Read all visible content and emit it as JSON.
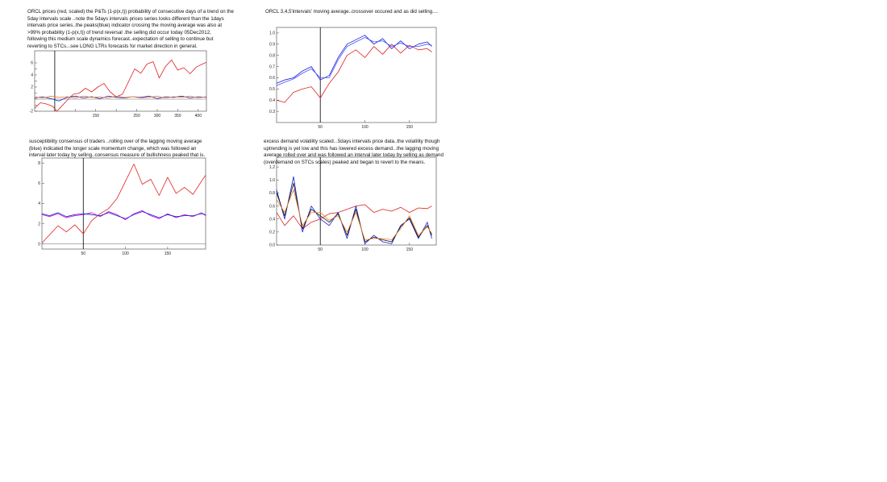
{
  "captions": {
    "p1": "ORCL prices (red, scaled) the P&Ts (1-p(x,t))     probability of consecutive days of a trend on the\n5day intervals scale ..note the 5days intervals prices series looks different than the 1days\nintervals price series..the peaks(blue) indicator crossing the moving average was also at\n>99% probability (1-p(x,t)) of trend reversal .the selling did occur today 05Dec2012,\nfollowing this medium scale dynamics forecast..expectation of selling to continue but\nreverting to STCs...see LONG LTRs forecasts for market direction in general.",
    "p2": "ORCL 3,4,5'intervals' moving average..crossover occured and as did selling....",
    "p3": "susceptibility consensus of traders ..rolling over of the lagging moving average\n(blue) indicated the longer scale momentum change, which was followed an\ninterval later today by selling..consensus measure of bullishness peaked that is.",
    "p4": "excess demand volatility scaled...5days intervals price data..the volatility though\nuptrending is yet low and this has lowered excess demand...the lagging moving\naverage rolled over and was followed an interval later today by selling as demand\n(overdemand on STCs scales) peaked and began to revert to the means."
  },
  "chart_data": [
    {
      "type": "line",
      "xlim": [
        1,
        420
      ],
      "ylim": [
        -2,
        8
      ],
      "xticks": [
        50,
        100,
        150,
        200,
        250,
        300,
        350,
        400
      ],
      "xtick_labels": [
        "",
        "",
        "150",
        "",
        "250",
        "300",
        "350",
        "400"
      ],
      "yticks": [
        -2,
        -1,
        0,
        1,
        2,
        3,
        4,
        5,
        6
      ],
      "ytick_labels": [
        "-2",
        "",
        "",
        "",
        "2",
        "",
        "4",
        "",
        "6"
      ],
      "vline": 50,
      "grid": false,
      "series": [
        {
          "color": "#e02020",
          "x": [
            1,
            15,
            30,
            45,
            55,
            65,
            80,
            95,
            110,
            125,
            140,
            155,
            170,
            185,
            200,
            215,
            230,
            245,
            260,
            275,
            290,
            305,
            320,
            335,
            350,
            365,
            380,
            395,
            410,
            420
          ],
          "y": [
            -1.5,
            -0.6,
            -0.8,
            -1.2,
            -2.0,
            -1.3,
            -0.2,
            0.8,
            1.0,
            1.8,
            1.2,
            2.0,
            2.6,
            1.2,
            0.4,
            0.8,
            2.9,
            5.0,
            4.3,
            5.8,
            6.2,
            3.5,
            5.4,
            6.5,
            4.8,
            5.2,
            4.2,
            5.3,
            5.8,
            6.1
          ]
        },
        {
          "color": "#1020d0",
          "x": [
            1,
            20,
            40,
            60,
            80,
            100,
            120,
            140,
            160,
            180,
            200,
            220,
            240,
            260,
            280,
            300,
            320,
            340,
            360,
            380,
            400,
            420
          ],
          "y": [
            0.2,
            0.4,
            0.1,
            -0.3,
            0.3,
            0.5,
            0.2,
            0.4,
            0.1,
            0.5,
            0.3,
            0.2,
            0.4,
            0.3,
            0.5,
            0.1,
            0.4,
            0.3,
            0.5,
            0.2,
            0.4,
            0.3
          ]
        },
        {
          "color": "#f08020",
          "x": [
            1,
            20,
            40,
            60,
            80,
            100,
            120,
            140,
            160,
            180,
            200,
            220,
            240,
            260,
            280,
            300,
            320,
            340,
            360,
            380,
            400,
            420
          ],
          "y": [
            0.4,
            0.2,
            0.5,
            0.3,
            0.4,
            0.2,
            0.5,
            0.3,
            0.4,
            0.2,
            0.5,
            0.3,
            0.4,
            0.2,
            0.3,
            0.5,
            0.2,
            0.4,
            0.3,
            0.5,
            0.2,
            0.4
          ]
        }
      ]
    },
    {
      "type": "line",
      "xlim": [
        1,
        180
      ],
      "ylim": [
        0.2,
        1.05
      ],
      "xticks": [
        50,
        100,
        150
      ],
      "xtick_labels": [
        "50",
        "100",
        "150"
      ],
      "yticks": [
        0.3,
        0.4,
        0.5,
        0.6,
        0.7,
        0.8,
        0.9,
        1.0
      ],
      "ytick_labels": [
        "0.3",
        "0.4",
        "0.5",
        "0.6",
        "0.7",
        "0.8",
        "0.9",
        "1.0"
      ],
      "vline": 50,
      "grid": false,
      "series": [
        {
          "color": "#e02020",
          "x": [
            1,
            10,
            20,
            30,
            40,
            50,
            60,
            70,
            80,
            90,
            100,
            110,
            120,
            130,
            140,
            150,
            160,
            170,
            175
          ],
          "y": [
            0.4,
            0.38,
            0.47,
            0.5,
            0.52,
            0.42,
            0.55,
            0.65,
            0.8,
            0.85,
            0.78,
            0.88,
            0.81,
            0.9,
            0.82,
            0.89,
            0.85,
            0.86,
            0.83
          ]
        },
        {
          "color": "#1020d0",
          "x": [
            1,
            10,
            20,
            30,
            40,
            50,
            60,
            70,
            80,
            90,
            100,
            110,
            120,
            130,
            140,
            150,
            160,
            170,
            175
          ],
          "y": [
            0.55,
            0.58,
            0.6,
            0.66,
            0.7,
            0.58,
            0.62,
            0.78,
            0.9,
            0.94,
            0.98,
            0.9,
            0.95,
            0.86,
            0.93,
            0.86,
            0.9,
            0.92,
            0.88
          ]
        },
        {
          "color": "#5050ff",
          "x": [
            1,
            10,
            20,
            30,
            40,
            50,
            60,
            70,
            80,
            90,
            100,
            110,
            120,
            130,
            140,
            150,
            160,
            170,
            175
          ],
          "y": [
            0.53,
            0.56,
            0.59,
            0.64,
            0.68,
            0.6,
            0.6,
            0.76,
            0.88,
            0.92,
            0.96,
            0.92,
            0.93,
            0.88,
            0.91,
            0.88,
            0.88,
            0.9,
            0.89
          ]
        }
      ]
    },
    {
      "type": "line",
      "xlim": [
        1,
        195
      ],
      "ylim": [
        -0.5,
        8.5
      ],
      "xticks": [
        50,
        100,
        150
      ],
      "xtick_labels": [
        "50",
        "100",
        "150"
      ],
      "yticks": [
        0,
        2,
        4,
        6,
        8
      ],
      "ytick_labels": [
        "0",
        "2",
        "4",
        "6",
        "8"
      ],
      "vline": 50,
      "grid": false,
      "series": [
        {
          "color": "#e02020",
          "x": [
            1,
            10,
            20,
            30,
            40,
            50,
            60,
            70,
            80,
            90,
            100,
            110,
            120,
            130,
            140,
            150,
            160,
            170,
            180,
            190,
            195
          ],
          "y": [
            0.1,
            0.9,
            1.8,
            1.2,
            1.9,
            1.0,
            2.3,
            3.0,
            3.5,
            4.5,
            6.2,
            7.9,
            5.9,
            6.4,
            4.8,
            6.6,
            5.0,
            5.6,
            4.9,
            6.2,
            6.8
          ]
        },
        {
          "color": "#cc00cc",
          "x": [
            1,
            10,
            20,
            30,
            40,
            50,
            60,
            70,
            80,
            90,
            100,
            110,
            120,
            130,
            140,
            150,
            160,
            170,
            180,
            190,
            195
          ],
          "y": [
            2.9,
            2.7,
            3.0,
            2.6,
            2.8,
            2.9,
            3.1,
            2.7,
            3.2,
            2.9,
            2.4,
            3.0,
            3.3,
            2.8,
            2.5,
            3.0,
            2.6,
            2.9,
            2.7,
            3.1,
            2.8
          ]
        },
        {
          "color": "#1020d0",
          "x": [
            1,
            10,
            20,
            30,
            40,
            50,
            60,
            70,
            80,
            90,
            100,
            110,
            120,
            130,
            140,
            150,
            160,
            170,
            180,
            190,
            195
          ],
          "y": [
            3.0,
            2.8,
            3.1,
            2.7,
            2.9,
            3.0,
            2.9,
            2.8,
            3.1,
            2.8,
            2.5,
            2.9,
            3.2,
            2.9,
            2.6,
            2.9,
            2.7,
            2.8,
            2.8,
            3.0,
            2.9
          ]
        }
      ]
    },
    {
      "type": "line",
      "xlim": [
        1,
        180
      ],
      "ylim": [
        0,
        1.35
      ],
      "xticks": [
        50,
        100,
        150
      ],
      "xtick_labels": [
        "50",
        "100",
        "150"
      ],
      "yticks": [
        0,
        0.2,
        0.4,
        0.6,
        0.8,
        1.0,
        1.2
      ],
      "ytick_labels": [
        "0.0",
        "0.2",
        "0.4",
        "0.6",
        "0.8",
        "1.0",
        "1.2"
      ],
      "vline": 50,
      "grid": false,
      "series": [
        {
          "color": "#e02020",
          "x": [
            1,
            10,
            20,
            30,
            40,
            50,
            60,
            70,
            80,
            90,
            100,
            110,
            120,
            130,
            140,
            150,
            160,
            170,
            175
          ],
          "y": [
            0.5,
            0.3,
            0.45,
            0.25,
            0.35,
            0.4,
            0.48,
            0.5,
            0.55,
            0.6,
            0.62,
            0.5,
            0.55,
            0.52,
            0.58,
            0.5,
            0.57,
            0.56,
            0.6
          ]
        },
        {
          "color": "#1020d0",
          "x": [
            1,
            10,
            20,
            30,
            40,
            50,
            60,
            70,
            80,
            90,
            100,
            110,
            120,
            130,
            140,
            150,
            160,
            170,
            175
          ],
          "y": [
            0.85,
            0.4,
            1.05,
            0.2,
            0.6,
            0.4,
            0.3,
            0.5,
            0.1,
            0.6,
            0.02,
            0.15,
            0.05,
            0.02,
            0.3,
            0.4,
            0.1,
            0.35,
            0.1
          ]
        },
        {
          "color": "#111111",
          "x": [
            1,
            10,
            20,
            30,
            40,
            50,
            60,
            70,
            80,
            90,
            100,
            110,
            120,
            130,
            140,
            150,
            160,
            170,
            175
          ],
          "y": [
            0.8,
            0.45,
            0.95,
            0.25,
            0.55,
            0.45,
            0.35,
            0.48,
            0.15,
            0.55,
            0.05,
            0.12,
            0.08,
            0.05,
            0.28,
            0.42,
            0.12,
            0.3,
            0.15
          ]
        },
        {
          "color": "#f08020",
          "x": [
            1,
            10,
            20,
            30,
            40,
            50,
            60,
            70,
            80,
            90,
            100,
            110,
            120,
            130,
            140,
            150,
            160,
            170,
            175
          ],
          "y": [
            0.7,
            0.5,
            0.85,
            0.3,
            0.5,
            0.5,
            0.38,
            0.45,
            0.2,
            0.5,
            0.08,
            0.1,
            0.1,
            0.08,
            0.25,
            0.45,
            0.15,
            0.28,
            0.18
          ]
        }
      ]
    }
  ]
}
